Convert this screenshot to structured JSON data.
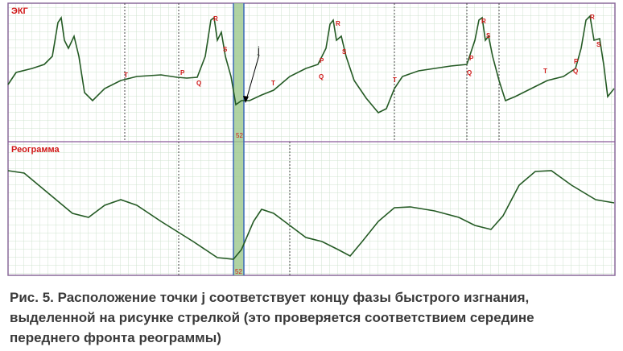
{
  "figure": {
    "panels": [
      "ЭКГ",
      "Реограмма"
    ],
    "markers": [
      "52",
      "52"
    ],
    "point_labels": [
      "T",
      "P",
      "Q",
      "R",
      "S",
      "j",
      "T",
      "P",
      "Q",
      "R",
      "S",
      "T",
      "P",
      "Q",
      "R",
      "S",
      "T",
      "P",
      "Q",
      "R",
      "S"
    ],
    "caption": [
      "Рис. 5. Расположение точки j соответствует концу фазы быстрого изгнания,",
      "выделенной на рисунке стрелкой (это проверяется соответствием середине",
      "переднего фронта реограммы)"
    ]
  }
}
